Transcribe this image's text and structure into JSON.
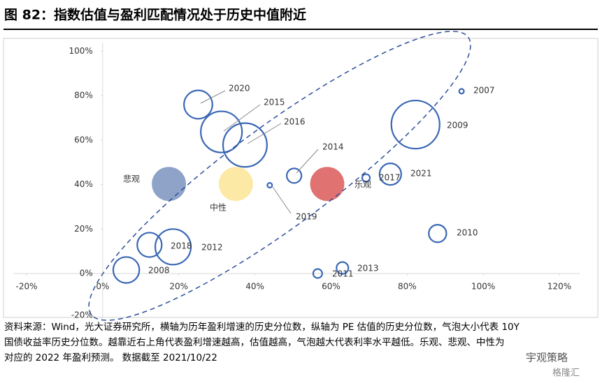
{
  "title": "图 82：指数估值与盈利匹配情况处于历史中值附近",
  "chart_data": {
    "type": "bubble",
    "xlim": [
      -20,
      120
    ],
    "xticks": [
      {
        "value": -20,
        "label": "-20%"
      },
      {
        "value": 0,
        "label": "0%"
      },
      {
        "value": 20,
        "label": "20%"
      },
      {
        "value": 40,
        "label": "40%"
      },
      {
        "value": 60,
        "label": "60%"
      },
      {
        "value": 80,
        "label": "80%"
      },
      {
        "value": 100,
        "label": "100%"
      },
      {
        "value": 120,
        "label": "120%"
      }
    ],
    "ylim": [
      -20,
      100
    ],
    "yticks": [
      {
        "value": -20,
        "label": "-20%"
      },
      {
        "value": 0,
        "label": "0%"
      },
      {
        "value": 20,
        "label": "20%"
      },
      {
        "value": 40,
        "label": "40%"
      },
      {
        "value": 60,
        "label": "60%"
      },
      {
        "value": 80,
        "label": "80%"
      },
      {
        "value": 100,
        "label": "100%"
      }
    ],
    "series": [
      {
        "style": "outline",
        "color": "#3a67b5",
        "labels": [
          "2020",
          "2015",
          "2016",
          "2014",
          "2019",
          "2007",
          "2009",
          "2021",
          "2017",
          "2010",
          "2013",
          "2011",
          "2018",
          "2012",
          "2008"
        ],
        "x": [
          25.1,
          31.2,
          37.4,
          50.3,
          43.9,
          94.3,
          82.2,
          75.6,
          69.2,
          88,
          63,
          56.5,
          18.5,
          12.3,
          6.2
        ],
        "values": [
          76,
          63.7,
          57.8,
          44,
          39.7,
          82,
          67,
          44.7,
          43,
          18,
          2.5,
          0,
          12,
          12.9,
          1.6
        ],
        "sizes": [
          29,
          64,
          73,
          6.6,
          0.3,
          0.3,
          89,
          16,
          1.3,
          10,
          4,
          2,
          47,
          21,
          24
        ]
      },
      {
        "style": "filled",
        "colors": [
          "#8fa3c9",
          "#fde9a6",
          "#e07272"
        ],
        "labels": [
          "悲观",
          "中性",
          "乐观"
        ],
        "x": [
          17.4,
          35,
          59
        ],
        "values": [
          40.3,
          40.3,
          40.3
        ],
        "sizes": [
          43,
          43,
          43
        ]
      }
    ]
  },
  "note": [
    "资料来源：Wind，光大证券研究所，横轴为历年盈利增速的历史分位数，纵轴为 PE 估值的历史分位数，气泡大小代表 10Y",
    "国债收益率历史分位数。越靠近右上角代表盈利增速越高，估值越高，气泡越大代表利率水平越低。乐观、悲观、中性为",
    "对应的 2022 年盈利预测。  数据截至 2021/10/22"
  ],
  "watermark": [
    "宇观策略",
    "格隆汇"
  ]
}
